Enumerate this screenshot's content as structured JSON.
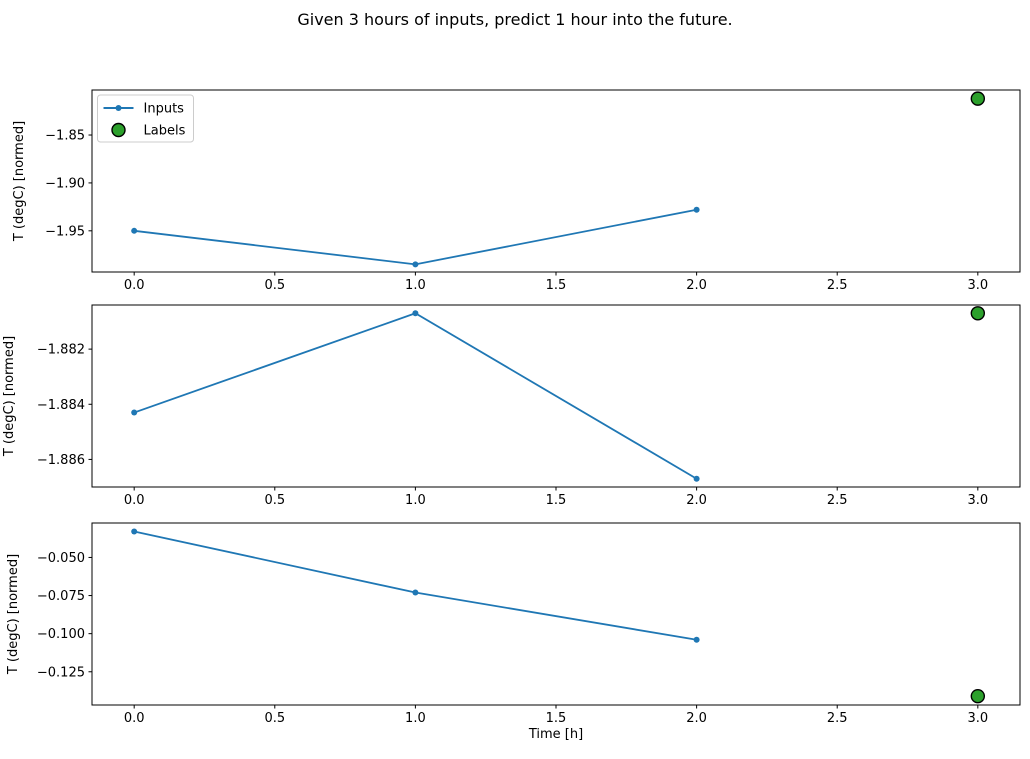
{
  "title": "Given 3 hours of inputs, predict 1 hour into the future.",
  "colors": {
    "inputs_line": "#1f77b4",
    "labels_fill": "#2ca02c",
    "labels_edge": "#000000",
    "axis": "#000000",
    "legend_border": "#cccccc",
    "background": "#ffffff"
  },
  "legend": {
    "position": "upper-left",
    "entries": [
      {
        "label": "Inputs",
        "type": "line-marker",
        "color": "#1f77b4"
      },
      {
        "label": "Labels",
        "type": "circle",
        "fill": "#2ca02c",
        "edge": "#000000"
      }
    ]
  },
  "chart_data": [
    {
      "type": "line",
      "ylabel": "T (degC) [normed]",
      "xlabel": "",
      "x": [
        0.0,
        1.0,
        2.0
      ],
      "series": [
        {
          "name": "Inputs",
          "values": [
            -1.95,
            -1.985,
            -1.928
          ]
        }
      ],
      "label_point": {
        "name": "Labels",
        "x": 3.0,
        "y": -1.812
      },
      "xlim": [
        -0.15,
        3.15
      ],
      "ylim": [
        -1.993,
        -1.803
      ],
      "xticks": {
        "values": [
          0.0,
          0.5,
          1.0,
          1.5,
          2.0,
          2.5,
          3.0
        ],
        "labels": [
          "0.0",
          "0.5",
          "1.0",
          "1.5",
          "2.0",
          "2.5",
          "3.0"
        ]
      },
      "yticks": {
        "values": [
          -1.85,
          -1.9,
          -1.95
        ],
        "labels": [
          "−1.85",
          "−1.90",
          "−1.95"
        ]
      },
      "grid": false,
      "legend_visible": true
    },
    {
      "type": "line",
      "ylabel": "T (degC) [normed]",
      "xlabel": "",
      "x": [
        0.0,
        1.0,
        2.0
      ],
      "series": [
        {
          "name": "Inputs",
          "values": [
            -1.8843,
            -1.8807,
            -1.8867
          ]
        }
      ],
      "label_point": {
        "name": "Labels",
        "x": 3.0,
        "y": -1.8807
      },
      "xlim": [
        -0.15,
        3.15
      ],
      "ylim": [
        -1.887,
        -1.8804
      ],
      "xticks": {
        "values": [
          0.0,
          0.5,
          1.0,
          1.5,
          2.0,
          2.5,
          3.0
        ],
        "labels": [
          "0.0",
          "0.5",
          "1.0",
          "1.5",
          "2.0",
          "2.5",
          "3.0"
        ]
      },
      "yticks": {
        "values": [
          -1.882,
          -1.884,
          -1.886
        ],
        "labels": [
          "−1.882",
          "−1.884",
          "−1.886"
        ]
      },
      "grid": false,
      "legend_visible": false
    },
    {
      "type": "line",
      "ylabel": "T (degC) [normed]",
      "xlabel": "Time [h]",
      "x": [
        0.0,
        1.0,
        2.0
      ],
      "series": [
        {
          "name": "Inputs",
          "values": [
            -0.033,
            -0.073,
            -0.104
          ]
        }
      ],
      "label_point": {
        "name": "Labels",
        "x": 3.0,
        "y": -0.141
      },
      "xlim": [
        -0.15,
        3.15
      ],
      "ylim": [
        -0.1468,
        -0.0274
      ],
      "xticks": {
        "values": [
          0.0,
          0.5,
          1.0,
          1.5,
          2.0,
          2.5,
          3.0
        ],
        "labels": [
          "0.0",
          "0.5",
          "1.0",
          "1.5",
          "2.0",
          "2.5",
          "3.0"
        ]
      },
      "yticks": {
        "values": [
          -0.05,
          -0.075,
          -0.1,
          -0.125
        ],
        "labels": [
          "−0.050",
          "−0.075",
          "−0.100",
          "−0.125"
        ]
      },
      "grid": false,
      "legend_visible": false
    }
  ]
}
